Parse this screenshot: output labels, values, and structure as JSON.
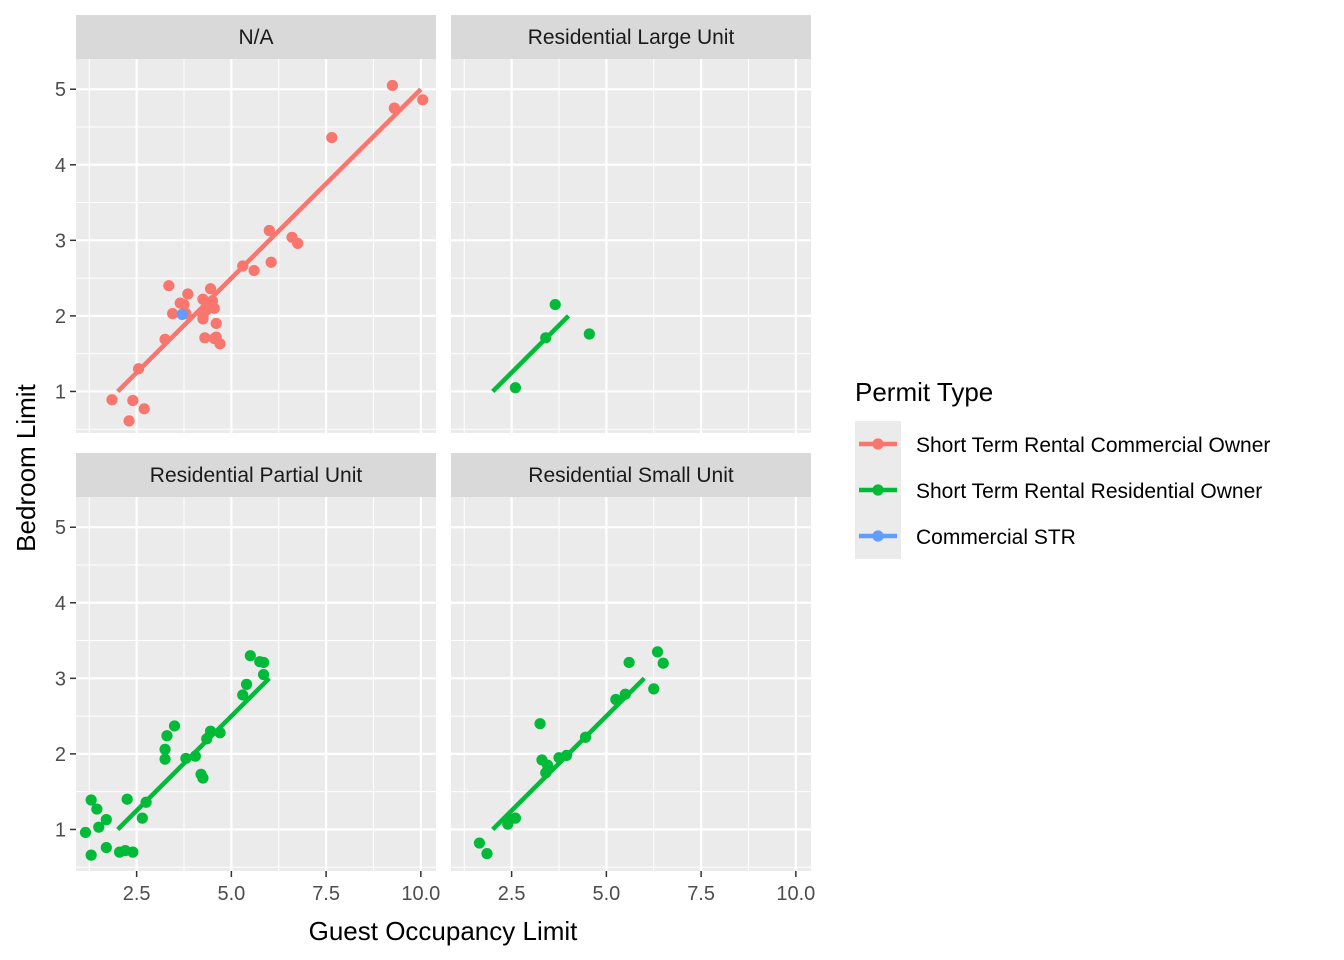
{
  "chart_data": {
    "type": "scatter",
    "xlabel": "Guest Occupancy Limit",
    "ylabel": "Bedroom Limit",
    "xlim": [
      0.9,
      10.4
    ],
    "ylim": [
      0.45,
      5.4
    ],
    "x_ticks": [
      2.5,
      5.0,
      7.5,
      10.0
    ],
    "x_tick_labels": [
      "2.5",
      "5.0",
      "7.5",
      "10.0"
    ],
    "y_ticks": [
      1,
      2,
      3,
      4,
      5
    ],
    "y_tick_labels": [
      "1",
      "2",
      "3",
      "4",
      "5"
    ],
    "grid": true,
    "legend": {
      "title": "Permit Type",
      "placement": "right",
      "entries": [
        {
          "label": "Short Term Rental Commercial Owner",
          "color": "#F8766D"
        },
        {
          "label": "Short Term Rental Residential Owner",
          "color": "#00BA38"
        },
        {
          "label": "Commercial STR",
          "color": "#619CFF"
        }
      ]
    },
    "panels": [
      {
        "title": "N/A",
        "series": [
          {
            "name": "Short Term Rental Commercial Owner",
            "color": "#F8766D",
            "points": [
              [
                1.85,
                0.89
              ],
              [
                2.3,
                0.61
              ],
              [
                2.4,
                0.88
              ],
              [
                2.7,
                0.77
              ],
              [
                2.55,
                1.3
              ],
              [
                3.25,
                1.69
              ],
              [
                3.35,
                2.4
              ],
              [
                3.45,
                2.03
              ],
              [
                3.65,
                2.17
              ],
              [
                3.75,
                2.15
              ],
              [
                3.8,
                2.03
              ],
              [
                3.85,
                2.29
              ],
              [
                4.25,
                2.22
              ],
              [
                4.25,
                2.0
              ],
              [
                4.25,
                1.96
              ],
              [
                4.3,
                1.71
              ],
              [
                4.35,
                2.08
              ],
              [
                4.45,
                2.36
              ],
              [
                4.5,
                2.2
              ],
              [
                4.55,
                1.7
              ],
              [
                4.55,
                2.1
              ],
              [
                4.6,
                1.72
              ],
              [
                4.6,
                1.9
              ],
              [
                4.7,
                1.63
              ],
              [
                5.3,
                2.66
              ],
              [
                5.6,
                2.6
              ],
              [
                6.0,
                3.13
              ],
              [
                6.05,
                2.71
              ],
              [
                6.6,
                3.04
              ],
              [
                6.75,
                2.96
              ],
              [
                7.65,
                4.36
              ],
              [
                9.25,
                5.05
              ],
              [
                9.3,
                4.75
              ],
              [
                10.05,
                4.86
              ]
            ],
            "fit": [
              [
                2.0,
                1.0
              ],
              [
                10.0,
                5.0
              ]
            ]
          },
          {
            "name": "Commercial STR",
            "color": "#619CFF",
            "points": [
              [
                3.7,
                2.02
              ]
            ],
            "fit": []
          }
        ]
      },
      {
        "title": "Residential Large Unit",
        "series": [
          {
            "name": "Short Term Rental Residential Owner",
            "color": "#00BA38",
            "points": [
              [
                2.6,
                1.05
              ],
              [
                3.4,
                1.71
              ],
              [
                3.65,
                2.15
              ],
              [
                4.55,
                1.76
              ]
            ],
            "fit": [
              [
                2.0,
                1.0
              ],
              [
                4.0,
                2.0
              ]
            ]
          }
        ]
      },
      {
        "title": "Residential Partial Unit",
        "series": [
          {
            "name": "Short Term Rental Residential Owner",
            "color": "#00BA38",
            "points": [
              [
                1.15,
                0.96
              ],
              [
                1.3,
                1.39
              ],
              [
                1.3,
                0.66
              ],
              [
                1.45,
                1.27
              ],
              [
                1.5,
                1.03
              ],
              [
                1.7,
                1.13
              ],
              [
                1.7,
                0.76
              ],
              [
                2.05,
                0.7
              ],
              [
                2.2,
                0.72
              ],
              [
                2.25,
                1.4
              ],
              [
                2.4,
                0.7
              ],
              [
                2.65,
                1.15
              ],
              [
                2.75,
                1.36
              ],
              [
                3.25,
                2.06
              ],
              [
                3.25,
                1.93
              ],
              [
                3.3,
                2.24
              ],
              [
                3.5,
                2.37
              ],
              [
                3.8,
                1.94
              ],
              [
                4.05,
                1.97
              ],
              [
                4.2,
                1.73
              ],
              [
                4.25,
                1.68
              ],
              [
                4.35,
                2.2
              ],
              [
                4.45,
                2.3
              ],
              [
                4.7,
                2.28
              ],
              [
                5.3,
                2.78
              ],
              [
                5.4,
                2.92
              ],
              [
                5.5,
                3.3
              ],
              [
                5.75,
                3.22
              ],
              [
                5.85,
                3.21
              ],
              [
                5.85,
                3.05
              ]
            ],
            "fit": [
              [
                2.0,
                1.0
              ],
              [
                6.0,
                3.0
              ]
            ]
          }
        ]
      },
      {
        "title": "Residential Small Unit",
        "series": [
          {
            "name": "Short Term Rental Residential Owner",
            "color": "#00BA38",
            "points": [
              [
                1.65,
                0.82
              ],
              [
                1.85,
                0.68
              ],
              [
                2.4,
                1.07
              ],
              [
                2.45,
                1.13
              ],
              [
                2.6,
                1.15
              ],
              [
                3.25,
                2.4
              ],
              [
                3.3,
                1.92
              ],
              [
                3.4,
                1.75
              ],
              [
                3.45,
                1.85
              ],
              [
                3.75,
                1.95
              ],
              [
                3.95,
                1.98
              ],
              [
                4.45,
                2.22
              ],
              [
                5.25,
                2.72
              ],
              [
                5.5,
                2.79
              ],
              [
                5.6,
                3.21
              ],
              [
                6.25,
                2.86
              ],
              [
                6.35,
                3.35
              ],
              [
                6.5,
                3.2
              ]
            ],
            "fit": [
              [
                2.0,
                1.0
              ],
              [
                6.0,
                3.0
              ]
            ]
          }
        ]
      }
    ]
  }
}
